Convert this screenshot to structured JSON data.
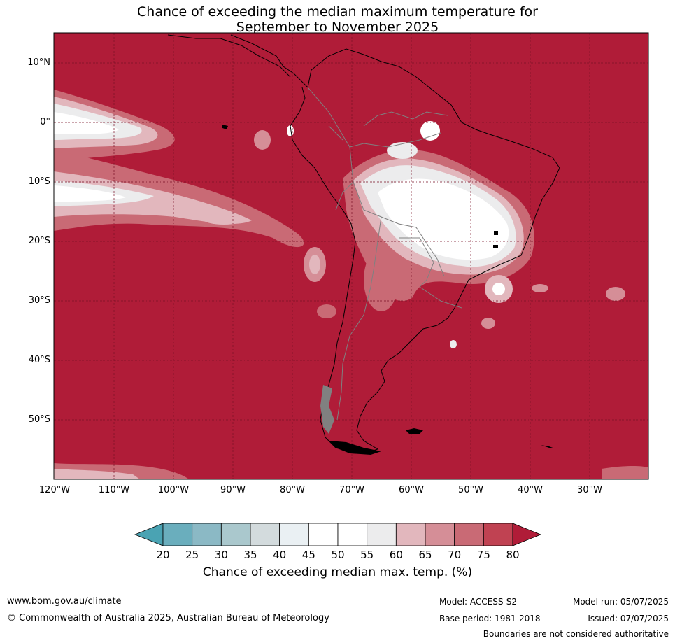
{
  "title_line1": "Chance of exceeding the median maximum temperature for",
  "title_line2": "September to November 2025",
  "lat_labels": [
    "10°N",
    "0°",
    "10°S",
    "20°S",
    "30°S",
    "40°S",
    "50°S"
  ],
  "lon_labels": [
    "120°W",
    "110°W",
    "100°W",
    "90°W",
    "80°W",
    "70°W",
    "60°W",
    "50°W",
    "40°W",
    "30°W"
  ],
  "colorbar": {
    "ticks": [
      "20",
      "25",
      "30",
      "35",
      "40",
      "45",
      "50",
      "55",
      "60",
      "65",
      "70",
      "75",
      "80"
    ],
    "colors": [
      "#4aa3b3",
      "#6aaebd",
      "#8bb9c5",
      "#aac8cd",
      "#d3dbdd",
      "#eaf0f3",
      "#ffffff",
      "#ffffff",
      "#ececed",
      "#e2b7bd",
      "#d58e97",
      "#c96a75",
      "#c04252",
      "#b01c38"
    ],
    "label": "Chance of exceeding median max. temp. (%)"
  },
  "map_colors": {
    "background": "#b01c38",
    "level_75": "#c04252",
    "level_70": "#c96a75",
    "level_65": "#d58e97",
    "level_60": "#e2b7bd",
    "level_55": "#ececed",
    "level_50": "#ffffff",
    "coast": "#000000",
    "border": "#808080"
  },
  "footer": {
    "website": "www.bom.gov.au/climate",
    "copyright": "© Commonwealth of Australia 2025, Australian Bureau of Meteorology",
    "model": "Model: ACCESS-S2",
    "base_period": "Base period: 1981-2018",
    "model_run": "Model run: 05/07/2025",
    "issued": "Issued: 07/07/2025",
    "disclaimer": "Boundaries are not considered authoritative"
  }
}
